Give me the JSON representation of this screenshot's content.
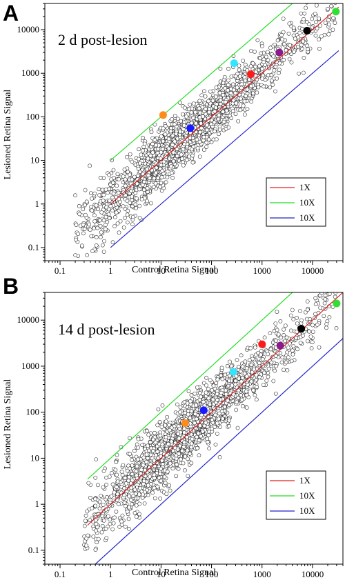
{
  "chart_data": [
    {
      "type": "scatter",
      "panel": "A",
      "annotation": "2 d post-lesion",
      "xlabel": "Control Retina Signal",
      "ylabel": "Lesioned Retina Signal",
      "xscale": "log",
      "yscale": "log",
      "xlim": [
        0.05,
        40000
      ],
      "ylim": [
        0.05,
        40000
      ],
      "xticks": [
        {
          "v": 0.1,
          "label": "0.1"
        },
        {
          "v": 1,
          "label": "1"
        },
        {
          "v": 10,
          "label": "10"
        },
        {
          "v": 100,
          "label": "100"
        },
        {
          "v": 1000,
          "label": "1000"
        },
        {
          "v": 10000,
          "label": "10000"
        }
      ],
      "yticks": [
        {
          "v": 0.1,
          "label": "0.1"
        },
        {
          "v": 1,
          "label": "1"
        },
        {
          "v": 10,
          "label": "10"
        },
        {
          "v": 100,
          "label": "100"
        },
        {
          "v": 1000,
          "label": "1000"
        },
        {
          "v": 10000,
          "label": "10000"
        }
      ],
      "legend": {
        "position": "lower-right",
        "entries": [
          {
            "label": "1X",
            "color": "#e02020"
          },
          {
            "label": "10X",
            "color": "#22dd22"
          },
          {
            "label": "10X",
            "color": "#2222cc"
          }
        ]
      },
      "lines": [
        {
          "label": "1X",
          "color": "#e02020",
          "x": [
            1,
            33000
          ],
          "y": [
            1,
            33000
          ]
        },
        {
          "label": "10X",
          "color": "#22dd22",
          "x": [
            1,
            4000
          ],
          "y": [
            10,
            40000
          ]
        },
        {
          "label": "10X",
          "color": "#2222cc",
          "x": [
            1,
            33000
          ],
          "y": [
            0.1,
            3300
          ]
        }
      ],
      "cloud": {
        "count": 2200,
        "x_range": [
          0.2,
          30000
        ],
        "log_scatter": 0.28,
        "marker": "open-circle"
      },
      "highlighted": [
        {
          "x": 11,
          "y": 110,
          "color": "#ff8c1a"
        },
        {
          "x": 38,
          "y": 55,
          "color": "#1a1aff"
        },
        {
          "x": 280,
          "y": 1700,
          "color": "#33e6ff"
        },
        {
          "x": 600,
          "y": 950,
          "color": "#ff1a1a"
        },
        {
          "x": 2200,
          "y": 3000,
          "color": "#8b1a8b"
        },
        {
          "x": 7800,
          "y": 9500,
          "color": "#000000"
        },
        {
          "x": 29000,
          "y": 26000,
          "color": "#33dd33"
        }
      ]
    },
    {
      "type": "scatter",
      "panel": "B",
      "annotation": "14 d post-lesion",
      "xlabel": "Control Retina Signal",
      "ylabel": "Lesioned Retina Signal",
      "xscale": "log",
      "yscale": "log",
      "xlim": [
        0.05,
        40000
      ],
      "ylim": [
        0.05,
        40000
      ],
      "xticks": [
        {
          "v": 0.1,
          "label": "0.1"
        },
        {
          "v": 1,
          "label": "1"
        },
        {
          "v": 10,
          "label": "10"
        },
        {
          "v": 100,
          "label": "100"
        },
        {
          "v": 1000,
          "label": "1000"
        },
        {
          "v": 10000,
          "label": "10000"
        }
      ],
      "yticks": [
        {
          "v": 0.1,
          "label": "0.1"
        },
        {
          "v": 1,
          "label": "1"
        },
        {
          "v": 10,
          "label": "10"
        },
        {
          "v": 100,
          "label": "100"
        },
        {
          "v": 1000,
          "label": "1000"
        },
        {
          "v": 10000,
          "label": "10000"
        }
      ],
      "legend": {
        "position": "lower-right",
        "entries": [
          {
            "label": "1X",
            "color": "#e02020"
          },
          {
            "label": "10X",
            "color": "#22dd22"
          },
          {
            "label": "10X",
            "color": "#2222cc"
          }
        ]
      },
      "lines": [
        {
          "label": "1X",
          "color": "#e02020",
          "x": [
            0.35,
            40000
          ],
          "y": [
            0.35,
            40000
          ]
        },
        {
          "label": "10X",
          "color": "#22dd22",
          "x": [
            0.35,
            4000
          ],
          "y": [
            3.5,
            40000
          ]
        },
        {
          "label": "10X",
          "color": "#2222cc",
          "x": [
            0.5,
            40000
          ],
          "y": [
            0.05,
            4000
          ]
        }
      ],
      "cloud": {
        "count": 2200,
        "x_range": [
          0.3,
          30000
        ],
        "log_scatter": 0.3,
        "marker": "open-circle"
      },
      "highlighted": [
        {
          "x": 30,
          "y": 58,
          "color": "#ff8c1a"
        },
        {
          "x": 70,
          "y": 110,
          "color": "#1a1aff"
        },
        {
          "x": 270,
          "y": 750,
          "color": "#33e6ff"
        },
        {
          "x": 1000,
          "y": 3000,
          "color": "#ff1a1a"
        },
        {
          "x": 2300,
          "y": 2800,
          "color": "#8b1a8b"
        },
        {
          "x": 6000,
          "y": 6500,
          "color": "#000000"
        },
        {
          "x": 30000,
          "y": 23000,
          "color": "#33dd33"
        }
      ]
    }
  ]
}
